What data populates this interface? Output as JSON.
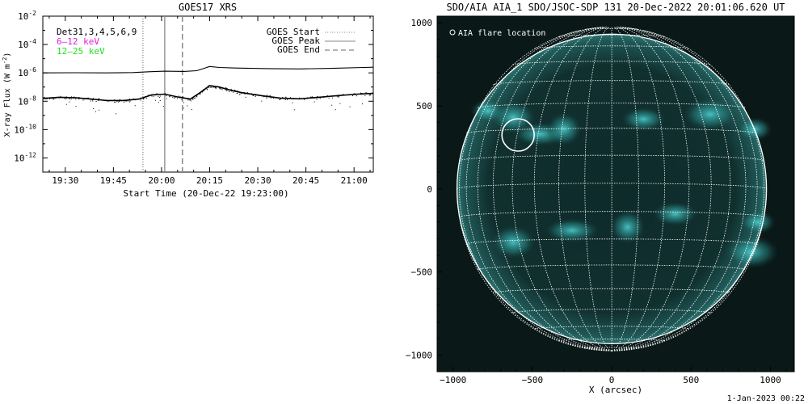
{
  "footer_timestamp": "1-Jan-2023 00:22",
  "chart_data": [
    {
      "type": "line",
      "title": "GOES17 XRS",
      "xlabel": "Start Time (20-Dec-22 19:23:00)",
      "ylabel_main": "X-ray Flux (W m",
      "ylabel_sup": "-2",
      "ylabel_close": ")",
      "xlim_minutes_after_start": [
        0,
        103
      ],
      "x_ticks": [
        {
          "label": "19:30",
          "minutes_after_start": 7
        },
        {
          "label": "19:45",
          "minutes_after_start": 22
        },
        {
          "label": "20:00",
          "minutes_after_start": 37
        },
        {
          "label": "20:15",
          "minutes_after_start": 52
        },
        {
          "label": "20:30",
          "minutes_after_start": 67
        },
        {
          "label": "20:45",
          "minutes_after_start": 82
        },
        {
          "label": "21:00",
          "minutes_after_start": 97
        }
      ],
      "y_scale": "log",
      "ylim_exponent": [
        -13,
        -2
      ],
      "y_ticks_exponent": [
        -12,
        -10,
        -8,
        -6,
        -4,
        -2
      ],
      "y_tick_base": "10",
      "legend_top_left": [
        "Det31,3,4,5,6,9",
        "6–12 keV",
        "12–25 keV"
      ],
      "legend_top_left_colors": [
        "#000000",
        "#e020e0",
        "#20e020"
      ],
      "legend_top_right": [
        "GOES Start",
        "GOES Peak",
        "GOES End"
      ],
      "event_lines": [
        {
          "name": "GOES Start",
          "minutes_after_start": 31.2,
          "style": "dotted"
        },
        {
          "name": "GOES Peak",
          "minutes_after_start": 38,
          "style": "solid"
        },
        {
          "name": "GOES End",
          "minutes_after_start": 43.5,
          "style": "dashed"
        }
      ],
      "series": [
        {
          "name": "long",
          "x_minutes": [
            0,
            10,
            20,
            28,
            33,
            38,
            44,
            48,
            52,
            55,
            60,
            70,
            80,
            90,
            100,
            103
          ],
          "log10_flux": [
            -6.0,
            -5.99,
            -6.0,
            -5.98,
            -5.92,
            -5.88,
            -5.9,
            -5.85,
            -5.55,
            -5.62,
            -5.66,
            -5.7,
            -5.72,
            -5.68,
            -5.62,
            -5.6
          ]
        },
        {
          "name": "short",
          "x_minutes": [
            0,
            5,
            10,
            15,
            20,
            25,
            30,
            34,
            38,
            42,
            46,
            49,
            52,
            55,
            58,
            62,
            68,
            74,
            80,
            86,
            92,
            98,
            103
          ],
          "log10_flux": [
            -7.8,
            -7.72,
            -7.75,
            -7.85,
            -7.95,
            -7.95,
            -7.85,
            -7.55,
            -7.5,
            -7.7,
            -7.85,
            -7.4,
            -6.9,
            -7.0,
            -7.2,
            -7.4,
            -7.6,
            -7.78,
            -7.83,
            -7.72,
            -7.6,
            -7.5,
            -7.45
          ]
        }
      ]
    },
    {
      "type": "scatter",
      "title": "SDO/AIA AIA_1 SDO/JSOC-SDP 131 20-Dec-2022 20:01:06.620 UT",
      "xlabel": "X (arcsec)",
      "ylabel": "",
      "xlim": [
        -1100,
        1150
      ],
      "ylim": [
        -1100,
        1040
      ],
      "x_ticks": [
        -1000,
        -500,
        0,
        500,
        1000
      ],
      "y_ticks": [
        1000,
        500,
        0,
        -500,
        -1000
      ],
      "solar_radius_arcsec": 975,
      "grid_spacing_deg": 10,
      "legend": "AIA flare location",
      "flare_location_arcsec": {
        "x": -590,
        "y": 325
      },
      "colors": {
        "disk_base": "#0d2626",
        "bright": "#3fcfcf",
        "grid": "#ffffff"
      },
      "bright_regions_arcsec": [
        {
          "x": -780,
          "y": 470
        },
        {
          "x": -620,
          "y": 430
        },
        {
          "x": -450,
          "y": 330
        },
        {
          "x": -300,
          "y": 360
        },
        {
          "x": 200,
          "y": 420
        },
        {
          "x": 620,
          "y": 450
        },
        {
          "x": 900,
          "y": 360
        },
        {
          "x": -620,
          "y": -320
        },
        {
          "x": -250,
          "y": -250
        },
        {
          "x": 100,
          "y": -230
        },
        {
          "x": 400,
          "y": -150
        },
        {
          "x": 880,
          "y": -380
        },
        {
          "x": 920,
          "y": -200
        }
      ]
    }
  ]
}
